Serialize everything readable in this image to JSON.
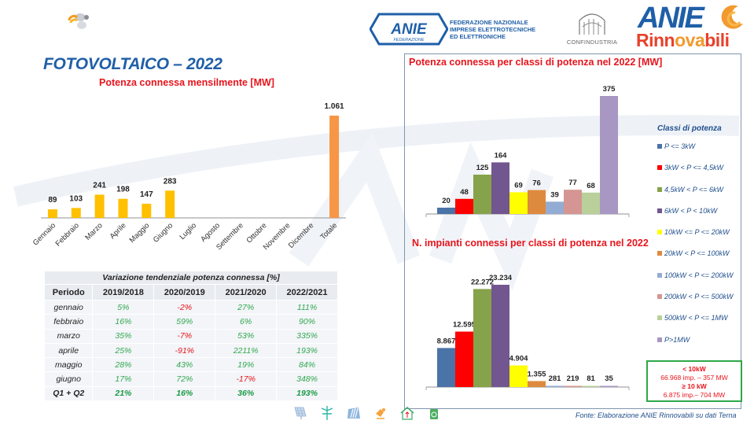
{
  "page": {
    "title": "FOTOVOLTAICO – 2022",
    "federation_lines": [
      "FEDERAZIONE NAZIONALE",
      "IMPRESE ELETTROTECNICHE",
      "ED ELETTRONICHE"
    ],
    "anie_federazione_logo": {
      "word": "ANIE",
      "sub": "FEDERAZIONE"
    },
    "confindustria_label": "CONFINDUSTRIA",
    "anie_rinnovabili_logo": {
      "word": "ANIE",
      "rinn_a": "Rinn",
      "rinn_b": "ova",
      "rinn_c": "bili"
    },
    "source": "Fonte: Elaborazione ANIE Rinnovabili su dati Terna",
    "footer_icons": [
      "solar-panel-icon",
      "wind-turbine-icon",
      "hydro-icon",
      "geothermal-icon",
      "home-storage-icon",
      "recycle-icon"
    ]
  },
  "colors": {
    "title_blue": "#1f5fa8",
    "subtitle_red": "#e8141c",
    "month_bar": "#ffc000",
    "total_bar": "#f79646",
    "positive": "#33a852",
    "negative": "#e8141c",
    "summary_border": "#2ea84a"
  },
  "chart_data": [
    {
      "id": "monthly",
      "type": "bar",
      "title": "Potenza connessa mensilmente [MW]",
      "categories": [
        "Gennaio",
        "Febbraio",
        "Marzo",
        "Aprile",
        "Maggio",
        "Giugno",
        "Luglio",
        "Agosto",
        "Settembre",
        "Ottobre",
        "Novembre",
        "Dicembre",
        "Totale"
      ],
      "values": [
        89,
        103,
        241,
        198,
        147,
        283,
        null,
        null,
        null,
        null,
        null,
        null,
        1061
      ],
      "labels": [
        "89",
        "103",
        "241",
        "198",
        "147",
        "283",
        "",
        "",
        "",
        "",
        "",
        "",
        "1.061"
      ],
      "xlabel": "",
      "ylabel": "",
      "ylim": [
        0,
        1061
      ],
      "grid": false
    },
    {
      "id": "power_by_class",
      "type": "bar",
      "title": "Potenza connessa per classi di potenza nel 2022 [MW]",
      "categories": [
        "P <= 3kW",
        "3kW < P <= 4,5kW",
        "4,5kW < P <= 6kW",
        "6kW < P < 10kW",
        "10kW <= P <= 20kW",
        "20kW < P <= 100kW",
        "100kW < P <= 200kW",
        "200kW < P <= 500kW",
        "500kW < P <= 1MW",
        "P>1MW"
      ],
      "values": [
        20,
        48,
        125,
        164,
        69,
        76,
        39,
        77,
        68,
        375
      ],
      "labels": [
        "20",
        "48",
        "125",
        "164",
        "69",
        "76",
        "39",
        "77",
        "68",
        "375"
      ],
      "colors": [
        "#4a73a8",
        "#ff0000",
        "#86a24a",
        "#725690",
        "#ffff00",
        "#de8a3e",
        "#93acd3",
        "#d49593",
        "#b9d09a",
        "#a797c2"
      ],
      "ylim": [
        0,
        375
      ],
      "legend": "right",
      "grid": false
    },
    {
      "id": "plants_by_class",
      "type": "bar",
      "title": "N. impianti connessi per classi di potenza nel 2022",
      "categories": [
        "P <= 3kW",
        "3kW < P <= 4,5kW",
        "4,5kW < P <= 6kW",
        "6kW < P < 10kW",
        "10kW <= P <= 20kW",
        "20kW < P <= 100kW",
        "100kW < P <= 200kW",
        "200kW < P <= 500kW",
        "500kW < P <= 1MW",
        "P>1MW"
      ],
      "values": [
        8867,
        12595,
        22272,
        23234,
        4904,
        1355,
        281,
        219,
        81,
        35
      ],
      "labels": [
        "8.867",
        "12.595",
        "22.272",
        "23.234",
        "4.904",
        "1.355",
        "281",
        "219",
        "81",
        "35"
      ],
      "colors": [
        "#4a73a8",
        "#ff0000",
        "#86a24a",
        "#725690",
        "#ffff00",
        "#de8a3e",
        "#93acd3",
        "#d49593",
        "#b9d09a",
        "#a797c2"
      ],
      "ylim": [
        0,
        23234
      ],
      "legend": "right",
      "grid": false
    }
  ],
  "legend": {
    "title": "Classi di potenza",
    "items": [
      {
        "label": "P <= 3kW",
        "color": "#4a73a8"
      },
      {
        "label": "3kW < P <= 4,5kW",
        "color": "#ff0000"
      },
      {
        "label": "4,5kW < P <= 6kW",
        "color": "#86a24a"
      },
      {
        "label": "6kW < P < 10kW",
        "color": "#725690"
      },
      {
        "label": "10kW <= P <= 20kW",
        "color": "#ffff00"
      },
      {
        "label": "20kW < P <= 100kW",
        "color": "#de8a3e"
      },
      {
        "label": "100kW < P <= 200kW",
        "color": "#93acd3"
      },
      {
        "label": "200kW < P <= 500kW",
        "color": "#d49593"
      },
      {
        "label": "500kW < P <= 1MW",
        "color": "#b9d09a"
      },
      {
        "label": "P>1MW",
        "color": "#a797c2"
      }
    ]
  },
  "table": {
    "caption": "Variazione tendenziale potenza connessa [%]",
    "headers": [
      "Periodo",
      "2019/2018",
      "2020/2019",
      "2021/2020",
      "2022/2021"
    ],
    "rows": [
      {
        "period": "gennaio",
        "values": [
          "5%",
          "-2%",
          "27%",
          "111%"
        ]
      },
      {
        "period": "febbraio",
        "values": [
          "16%",
          "59%",
          "6%",
          "90%"
        ]
      },
      {
        "period": "marzo",
        "values": [
          "35%",
          "-7%",
          "53%",
          "335%"
        ]
      },
      {
        "period": "aprile",
        "values": [
          "25%",
          "-91%",
          "2211%",
          "193%"
        ]
      },
      {
        "period": "maggio",
        "values": [
          "28%",
          "43%",
          "19%",
          "84%"
        ]
      },
      {
        "period": "giugno",
        "values": [
          "17%",
          "72%",
          "-17%",
          "348%"
        ]
      },
      {
        "period": "Q1 + Q2",
        "values": [
          "21%",
          "16%",
          "36%",
          "193%"
        ],
        "total": true
      }
    ]
  },
  "summary": {
    "lt10_label": "< 10kW",
    "lt10_value": "66.968 imp. – 357 MW",
    "ge10_label": "≥ 10 kW",
    "ge10_value": "6.875 imp.– 704 MW"
  }
}
